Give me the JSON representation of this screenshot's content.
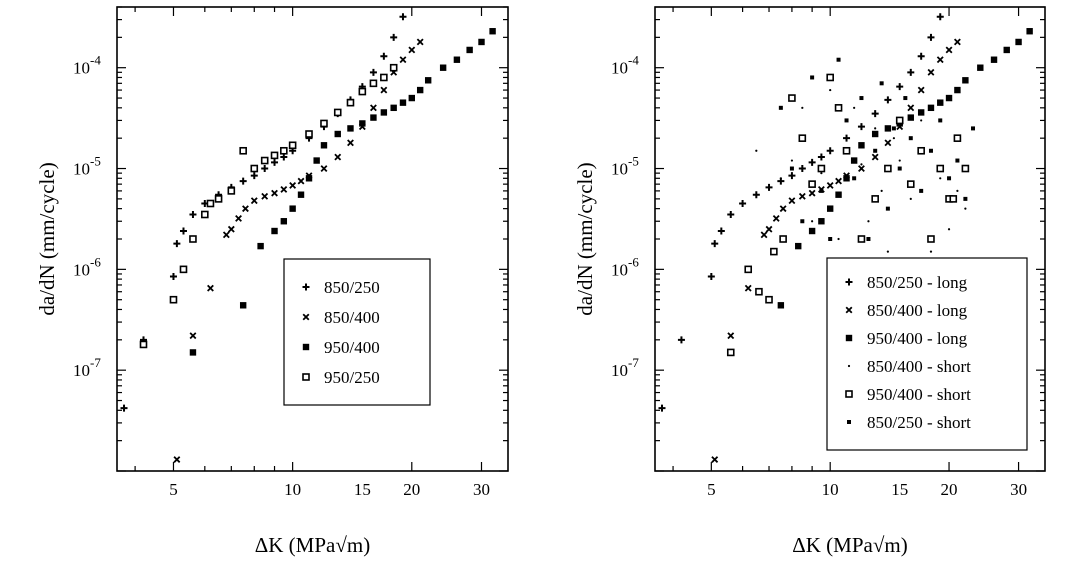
{
  "chart_data": [
    {
      "type": "scatter",
      "xlabel": "ΔK (MPa√m)",
      "ylabel": "da/dN (mm/cycle)",
      "xscale": "log",
      "yscale": "log",
      "xlim": [
        3.6,
        35
      ],
      "ylim": [
        1e-08,
        0.0004
      ],
      "xticks": [
        5,
        10,
        15,
        20,
        30
      ],
      "yticks": [
        1e-07,
        1e-06,
        1e-05,
        0.0001
      ],
      "ytick_labels": [
        [
          "10",
          "-7"
        ],
        [
          "10",
          "-6"
        ],
        [
          "10",
          "-5"
        ],
        [
          "10",
          "-4"
        ]
      ],
      "legend_position": "lower-right",
      "series": [
        {
          "name": "850/250",
          "marker": "plus",
          "x": [
            3.75,
            4.2,
            5.0,
            5.1,
            5.3,
            5.6,
            6.0,
            6.5,
            7.0,
            7.5,
            8.0,
            8.5,
            9.0,
            9.5,
            10.0,
            11.0,
            12.0,
            13.0,
            14.0,
            15.0,
            16.0,
            17.0,
            18.0,
            19.0
          ],
          "y": [
            4.2e-08,
            2e-07,
            8.5e-07,
            1.8e-06,
            2.4e-06,
            3.5e-06,
            4.5e-06,
            5.5e-06,
            6.5e-06,
            7.5e-06,
            8.5e-06,
            1e-05,
            1.15e-05,
            1.3e-05,
            1.5e-05,
            2e-05,
            2.6e-05,
            3.5e-05,
            4.8e-05,
            6.5e-05,
            9e-05,
            0.00013,
            0.0002,
            0.00032
          ]
        },
        {
          "name": "850/400",
          "marker": "x",
          "x": [
            5.1,
            5.6,
            6.2,
            6.8,
            7.0,
            7.3,
            7.6,
            8.0,
            8.5,
            9.0,
            9.5,
            10.0,
            10.5,
            11.0,
            12.0,
            13.0,
            14.0,
            15.0,
            16.0,
            17.0,
            18.0,
            19.0,
            20.0,
            21.0
          ],
          "y": [
            1.3e-08,
            2.2e-07,
            6.5e-07,
            2.2e-06,
            2.5e-06,
            3.2e-06,
            4e-06,
            4.8e-06,
            5.3e-06,
            5.7e-06,
            6.2e-06,
            6.8e-06,
            7.5e-06,
            8.5e-06,
            1e-05,
            1.3e-05,
            1.8e-05,
            2.6e-05,
            4e-05,
            6e-05,
            9e-05,
            0.00012,
            0.00015,
            0.00018
          ]
        },
        {
          "name": "950/400",
          "marker": "square",
          "x": [
            5.6,
            7.5,
            8.3,
            9.0,
            9.5,
            10.0,
            10.5,
            11.0,
            11.5,
            12.0,
            13.0,
            14.0,
            15.0,
            16.0,
            17.0,
            18.0,
            19.0,
            20.0,
            21.0,
            22.0,
            24.0,
            26.0,
            28.0,
            30.0,
            32.0
          ],
          "y": [
            1.5e-07,
            4.4e-07,
            1.7e-06,
            2.4e-06,
            3e-06,
            4e-06,
            5.5e-06,
            8e-06,
            1.2e-05,
            1.7e-05,
            2.2e-05,
            2.5e-05,
            2.8e-05,
            3.2e-05,
            3.6e-05,
            4e-05,
            4.5e-05,
            5e-05,
            6e-05,
            7.5e-05,
            0.0001,
            0.00012,
            0.00015,
            0.00018,
            0.00023
          ]
        },
        {
          "name": "950/250",
          "marker": "open-square",
          "x": [
            4.2,
            5.0,
            5.3,
            5.6,
            6.0,
            6.2,
            6.5,
            7.0,
            7.5,
            8.0,
            8.5,
            9.0,
            9.5,
            10.0,
            11.0,
            12.0,
            13.0,
            14.0,
            15.0,
            16.0,
            17.0,
            18.0
          ],
          "y": [
            1.8e-07,
            5e-07,
            1e-06,
            2e-06,
            3.5e-06,
            4.5e-06,
            5e-06,
            6e-06,
            1.5e-05,
            1e-05,
            1.2e-05,
            1.35e-05,
            1.5e-05,
            1.7e-05,
            2.2e-05,
            2.8e-05,
            3.6e-05,
            4.5e-05,
            5.8e-05,
            7e-05,
            8e-05,
            0.0001
          ]
        }
      ]
    },
    {
      "type": "scatter",
      "xlabel": "ΔK (MPa√m)",
      "ylabel": "da/dN (mm/cycle)",
      "xscale": "log",
      "yscale": "log",
      "xlim": [
        3.6,
        35
      ],
      "ylim": [
        1e-08,
        0.0004
      ],
      "xticks": [
        5,
        10,
        15,
        20,
        30
      ],
      "yticks": [
        1e-07,
        1e-06,
        1e-05,
        0.0001
      ],
      "ytick_labels": [
        [
          "10",
          "-7"
        ],
        [
          "10",
          "-6"
        ],
        [
          "10",
          "-5"
        ],
        [
          "10",
          "-4"
        ]
      ],
      "legend_position": "lower-right",
      "series": [
        {
          "name": "850/250 - long",
          "marker": "plus",
          "x": [
            3.75,
            4.2,
            5.0,
            5.1,
            5.3,
            5.6,
            6.0,
            6.5,
            7.0,
            7.5,
            8.0,
            8.5,
            9.0,
            9.5,
            10.0,
            11.0,
            12.0,
            13.0,
            14.0,
            15.0,
            16.0,
            17.0,
            18.0,
            19.0
          ],
          "y": [
            4.2e-08,
            2e-07,
            8.5e-07,
            1.8e-06,
            2.4e-06,
            3.5e-06,
            4.5e-06,
            5.5e-06,
            6.5e-06,
            7.5e-06,
            8.5e-06,
            1e-05,
            1.15e-05,
            1.3e-05,
            1.5e-05,
            2e-05,
            2.6e-05,
            3.5e-05,
            4.8e-05,
            6.5e-05,
            9e-05,
            0.00013,
            0.0002,
            0.00032
          ]
        },
        {
          "name": "850/400 - long",
          "marker": "x",
          "x": [
            5.1,
            5.6,
            6.2,
            6.8,
            7.0,
            7.3,
            7.6,
            8.0,
            8.5,
            9.0,
            9.5,
            10.0,
            10.5,
            11.0,
            12.0,
            13.0,
            14.0,
            15.0,
            16.0,
            17.0,
            18.0,
            19.0,
            20.0,
            21.0
          ],
          "y": [
            1.3e-08,
            2.2e-07,
            6.5e-07,
            2.2e-06,
            2.5e-06,
            3.2e-06,
            4e-06,
            4.8e-06,
            5.3e-06,
            5.7e-06,
            6.2e-06,
            6.8e-06,
            7.5e-06,
            8.5e-06,
            1e-05,
            1.3e-05,
            1.8e-05,
            2.6e-05,
            4e-05,
            6e-05,
            9e-05,
            0.00012,
            0.00015,
            0.00018
          ]
        },
        {
          "name": "950/400 - long",
          "marker": "square",
          "x": [
            5.6,
            7.5,
            8.3,
            9.0,
            9.5,
            10.0,
            10.5,
            11.0,
            11.5,
            12.0,
            13.0,
            14.0,
            15.0,
            16.0,
            17.0,
            18.0,
            19.0,
            20.0,
            21.0,
            22.0,
            24.0,
            26.0,
            28.0,
            30.0,
            32.0
          ],
          "y": [
            1.5e-07,
            4.4e-07,
            1.7e-06,
            2.4e-06,
            3e-06,
            4e-06,
            5.5e-06,
            8e-06,
            1.2e-05,
            1.7e-05,
            2.2e-05,
            2.5e-05,
            2.8e-05,
            3.2e-05,
            3.6e-05,
            4e-05,
            4.5e-05,
            5e-05,
            6e-05,
            7.5e-05,
            0.0001,
            0.00012,
            0.00015,
            0.00018,
            0.00023
          ]
        },
        {
          "name": "850/400 - short",
          "marker": "dot",
          "x": [
            6.5,
            7.0,
            7.5,
            8.0,
            8.5,
            9.0,
            9.5,
            10.0,
            10.5,
            11.0,
            11.5,
            12.0,
            12.5,
            13.0,
            13.5,
            14.0,
            14.5,
            15.0,
            16.0,
            17.0,
            18.0,
            19.0,
            20.0,
            21.0,
            22.0
          ],
          "y": [
            1.5e-05,
            2.5e-06,
            8e-06,
            1.2e-05,
            4e-05,
            3e-06,
            9e-06,
            6e-05,
            2e-06,
            1.5e-05,
            4e-05,
            1.1e-05,
            3e-06,
            2.5e-05,
            6e-06,
            1.5e-06,
            2e-05,
            1.2e-05,
            5e-06,
            3e-05,
            1.5e-06,
            8e-06,
            2.5e-06,
            6e-06,
            4e-06
          ]
        },
        {
          "name": "950/400 - short",
          "marker": "open-square",
          "x": [
            5.6,
            6.2,
            6.6,
            7.0,
            7.2,
            7.6,
            8.0,
            8.5,
            9.0,
            9.5,
            10.0,
            10.5,
            11.0,
            12.0,
            13.0,
            14.0,
            15.0,
            16.0,
            17.0,
            18.0,
            19.0,
            20.0,
            21.0,
            22.0,
            20.5
          ],
          "y": [
            1.5e-07,
            1e-06,
            6e-07,
            5e-07,
            1.5e-06,
            2e-06,
            5e-05,
            2e-05,
            7e-06,
            1e-05,
            8e-05,
            4e-05,
            1.5e-05,
            2e-06,
            5e-06,
            1e-05,
            3e-05,
            7e-06,
            1.5e-05,
            2e-06,
            1e-05,
            5e-06,
            2e-05,
            1e-05,
            5e-06
          ]
        },
        {
          "name": "850/250 - short",
          "marker": "small-square",
          "x": [
            7.5,
            8.0,
            8.5,
            9.0,
            9.5,
            10.0,
            10.5,
            11.0,
            11.5,
            12.0,
            12.5,
            13.0,
            13.5,
            14.0,
            14.5,
            15.0,
            15.5,
            16.0,
            17.0,
            18.0,
            19.0,
            20.0,
            21.0,
            22.0,
            23.0
          ],
          "y": [
            4e-05,
            1e-05,
            3e-06,
            8e-05,
            6e-06,
            2e-06,
            0.00012,
            3e-05,
            8e-06,
            5e-05,
            2e-06,
            1.5e-05,
            7e-05,
            4e-06,
            2.5e-05,
            1e-05,
            5e-05,
            2e-05,
            6e-06,
            1.5e-05,
            3e-05,
            8e-06,
            1.2e-05,
            5e-06,
            2.5e-05
          ]
        }
      ]
    }
  ]
}
